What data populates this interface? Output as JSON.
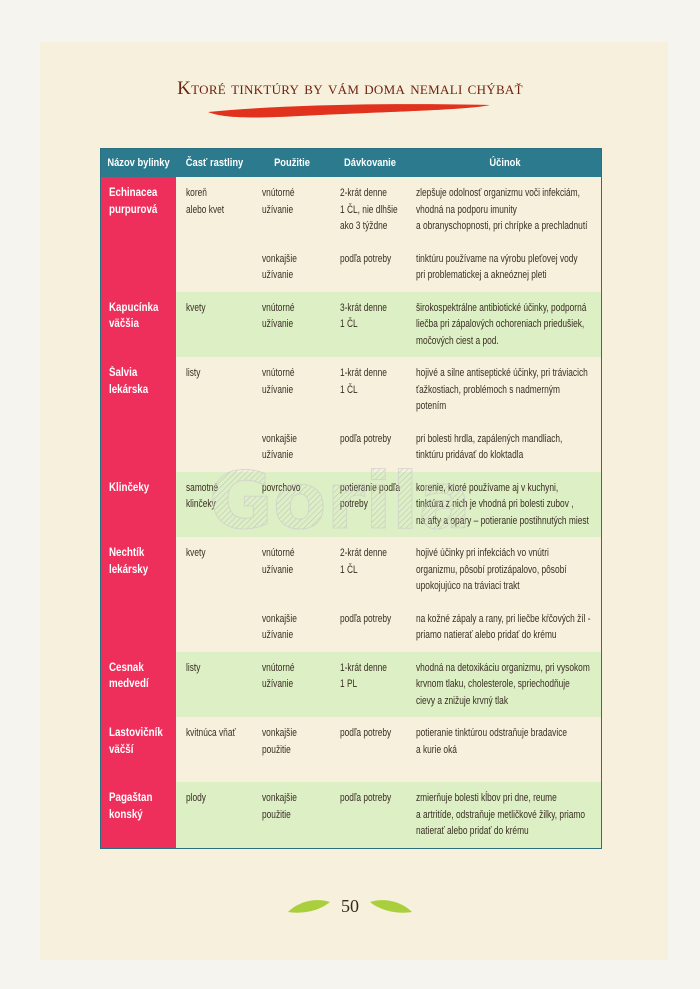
{
  "header": {
    "title": "Ktoré tinktúry by vám doma nemali chýbať"
  },
  "table": {
    "columns": [
      "Názov bylinky",
      "Časť rastliny",
      "Použitie",
      "Dávkovanie",
      "Účinok"
    ],
    "groups": [
      {
        "name": [
          "Echinacea",
          "purpurová"
        ],
        "part": [
          "koreň",
          "alebo kvet"
        ],
        "uses": [
          {
            "use": [
              "vnútorné",
              "užívanie"
            ],
            "dose": [
              "2-krát denne",
              "1 ČL, nie dlhšie",
              "ako 3 týždne"
            ],
            "effect": [
              "zlepšuje odolnosť organizmu voči infekciám,",
              "vhodná na podporu imunity",
              "a obranyschopnosti, pri chrípke a prechladnutí"
            ]
          },
          {
            "use": [
              "vonkajšie",
              "užívanie"
            ],
            "dose": [
              "podľa potreby"
            ],
            "effect": [
              "tinktúru používame na výrobu pleťovej vody",
              "pri problematickej a akneóznej pleti"
            ]
          }
        ]
      },
      {
        "name": [
          "Kapucínka",
          "väčšia"
        ],
        "part": [
          "kvety"
        ],
        "uses": [
          {
            "use": [
              "vnútorné",
              "užívanie"
            ],
            "dose": [
              "3-krát denne",
              "1 ČL"
            ],
            "effect": [
              "širokospektrálne antibiotické účinky, podporná",
              "liečba pri zápalových ochoreniach priedušiek,",
              "močových ciest a pod."
            ]
          }
        ]
      },
      {
        "name": [
          "Šalvia",
          "lekárska"
        ],
        "part": [
          "listy"
        ],
        "uses": [
          {
            "use": [
              "vnútorné",
              "užívanie"
            ],
            "dose": [
              "1-krát denne",
              "1 ČL"
            ],
            "effect": [
              "hojivé  a silne antiseptické účinky, pri tráviacich",
              "ťažkostiach, problémoch s nadmerným",
              "potením"
            ]
          },
          {
            "use": [
              "vonkajšie",
              "užívanie"
            ],
            "dose": [
              "podľa potreby"
            ],
            "effect": [
              "pri bolesti hrdla, zapálených mandliach,",
              "tinktúru pridávať do kloktadla"
            ]
          }
        ]
      },
      {
        "name": [
          "Klinčeky"
        ],
        "part": [
          "samotné",
          "klinčeky"
        ],
        "uses": [
          {
            "use": [
              "povrchovo"
            ],
            "dose": [
              "potieranie podľa",
              "potreby"
            ],
            "effect": [
              "korenie, ktoré používame aj v kuchyni,",
              "tinktúra z nich je vhodná pri bolesti zubov ,",
              "na afty a opary – potieranie postihnutých miest"
            ]
          }
        ]
      },
      {
        "name": [
          "Nechtík",
          "lekársky"
        ],
        "part": [
          "kvety"
        ],
        "uses": [
          {
            "use": [
              "vnútorné",
              "užívanie"
            ],
            "dose": [
              "2-krát denne",
              "1 ČL"
            ],
            "effect": [
              "hojivé účinky  pri infekciách vo vnútri",
              "organizmu, pôsobí protizápalovo, pôsobí",
              "upokojujúco na tráviaci trakt"
            ]
          },
          {
            "use": [
              "vonkajšie",
              "užívanie"
            ],
            "dose": [
              "podľa potreby"
            ],
            "effect": [
              "na kožné zápaly a rany, pri liečbe kŕčových žíl -",
              "priamo natierať alebo pridať do krému"
            ]
          }
        ]
      },
      {
        "name": [
          "Cesnak",
          "medvedí"
        ],
        "part": [
          "listy"
        ],
        "uses": [
          {
            "use": [
              "vnútorné",
              "užívanie"
            ],
            "dose": [
              "1-krát denne",
              "1 PL"
            ],
            "effect": [
              "vhodná na detoxikáciu organizmu, pri vysokom",
              "krvnom tlaku, cholesterole, spriechodňuje",
              "cievy a znižuje krvný tlak"
            ]
          }
        ]
      },
      {
        "name": [
          "Lastovičník",
          "väčší"
        ],
        "part": [
          "kvitnúca vňať"
        ],
        "uses": [
          {
            "use": [
              "vonkajšie",
              "použitie"
            ],
            "dose": [
              "podľa potreby"
            ],
            "effect": [
              "potieranie tinktúrou odstraňuje bradavice",
              "a kurie oká"
            ]
          }
        ]
      },
      {
        "name": [
          "Pagaštan",
          "konský"
        ],
        "part": [
          "plody"
        ],
        "uses": [
          {
            "use": [
              "vonkajšie",
              "použitie"
            ],
            "dose": [
              "podľa potreby"
            ],
            "effect": [
              "zmierňuje bolesti kĺbov pri dne, reume",
              "a artritíde, odstraňuje metličkové žilky, priamo",
              "natierať alebo pridať do krému"
            ]
          }
        ]
      }
    ]
  },
  "watermark": "Gorila",
  "footer": {
    "page_number": "50"
  }
}
